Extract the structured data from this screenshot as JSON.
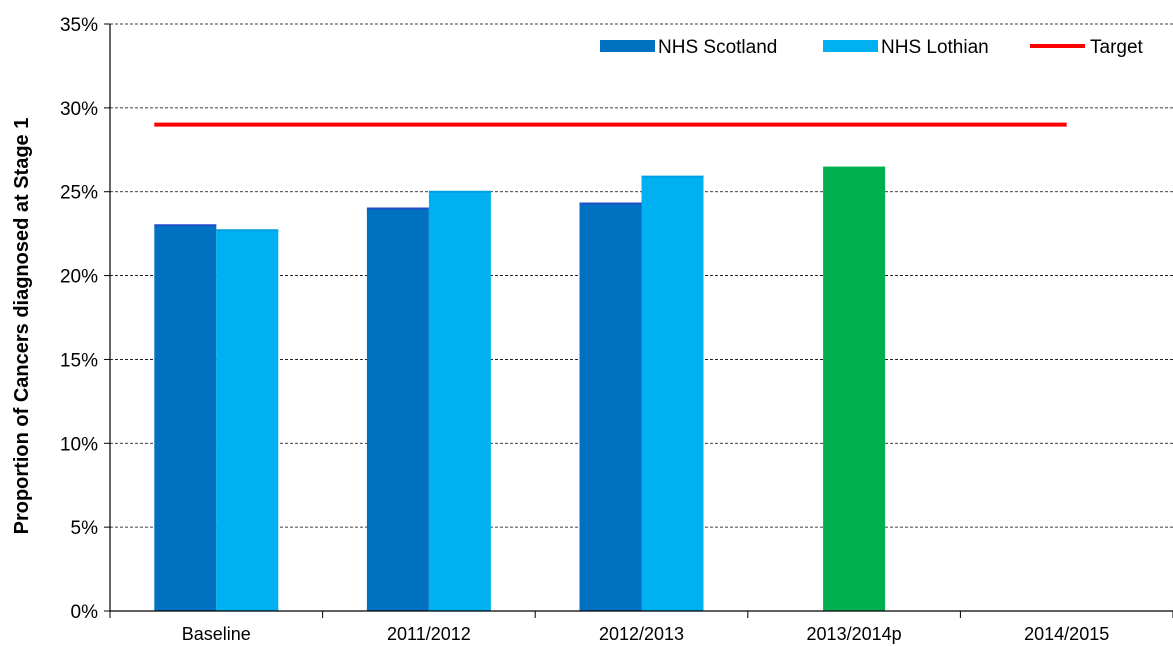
{
  "chart_data": {
    "type": "bar",
    "title": "",
    "xlabel": "",
    "ylabel": "Proportion of Cancers diagnosed at Stage 1",
    "ylim": [
      0,
      35
    ],
    "yticks": [
      0,
      5,
      10,
      15,
      20,
      25,
      30,
      35
    ],
    "ytick_labels": [
      "0%",
      "5%",
      "10%",
      "15%",
      "20%",
      "25%",
      "30%",
      "35%"
    ],
    "categories": [
      "Baseline",
      "2011/2012",
      "2012/2013",
      "2013/2014p",
      "2014/2015"
    ],
    "series": [
      {
        "name": "NHS Scotland",
        "color": "#0070C0",
        "values": [
          23.0,
          24.0,
          24.3,
          null,
          null
        ]
      },
      {
        "name": "NHS Lothian",
        "color": "#00B0F0",
        "values": [
          22.7,
          25.0,
          25.9,
          null,
          null
        ]
      }
    ],
    "extra_bars": [
      {
        "category": "2013/2014p",
        "value": 26.5,
        "color": "#00B050"
      }
    ],
    "target": {
      "name": "Target",
      "value": 29.0,
      "color": "#FF0000"
    },
    "grid": "horizontal-dashed",
    "legend_position": "top-right"
  }
}
